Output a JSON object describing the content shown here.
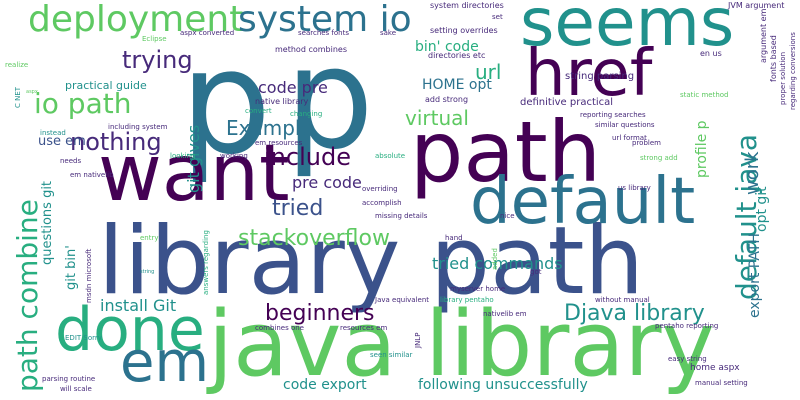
{
  "palette": {
    "dark_purple": "#440154",
    "indigo": "#472a7a",
    "dark_blue": "#3b528b",
    "steel_blue": "#2c728e",
    "teal": "#21918c",
    "sea_green": "#28ae80",
    "green": "#5ec962",
    "lime": "#addc30",
    "yellow": "#dde318"
  },
  "words": [
    {
      "text": "p",
      "weight": 320,
      "color": "#2c728e"
    },
    {
      "text": "p",
      "weight": 300,
      "color": "#2c728e"
    },
    {
      "text": "library path",
      "weight": 100,
      "color": "#3b528b"
    },
    {
      "text": "java library",
      "weight": 96,
      "color": "#5ec962"
    },
    {
      "text": "path",
      "weight": 86,
      "color": "#440154"
    },
    {
      "text": "want",
      "weight": 82,
      "color": "#440154"
    },
    {
      "text": "seems",
      "weight": 66,
      "color": "#21918c"
    },
    {
      "text": "href",
      "weight": 66,
      "color": "#440154"
    },
    {
      "text": "default",
      "weight": 64,
      "color": "#2c728e"
    },
    {
      "text": "done",
      "weight": 62,
      "color": "#28ae80"
    },
    {
      "text": "em",
      "weight": 60,
      "color": "#2c728e"
    },
    {
      "text": "deployment",
      "weight": 38,
      "color": "#5ec962"
    },
    {
      "text": "system io",
      "weight": 38,
      "color": "#2c728e"
    },
    {
      "text": "io path",
      "weight": 30,
      "color": "#5ec962"
    },
    {
      "text": "path combine",
      "weight": 30,
      "color": "#28ae80"
    },
    {
      "text": "default java",
      "weight": 28,
      "color": "#21918c"
    },
    {
      "text": "trying",
      "weight": 26,
      "color": "#472a7a"
    },
    {
      "text": "nothing",
      "weight": 26,
      "color": "#472a7a"
    },
    {
      "text": "include",
      "weight": 26,
      "color": "#440154"
    },
    {
      "text": "stackoverflow",
      "weight": 24,
      "color": "#5ec962"
    },
    {
      "text": "beginners",
      "weight": 24,
      "color": "#440154"
    },
    {
      "text": "Djava library",
      "weight": 24,
      "color": "#21918c"
    },
    {
      "text": "url",
      "weight": 22,
      "color": "#28ae80"
    },
    {
      "text": "virtual",
      "weight": 22,
      "color": "#5ec962"
    },
    {
      "text": "tried",
      "weight": 22,
      "color": "#3b528b"
    },
    {
      "text": "Example",
      "weight": 20,
      "color": "#2c728e"
    },
    {
      "text": "work",
      "weight": 18,
      "color": "#2c728e"
    },
    {
      "text": "code pre",
      "weight": 18,
      "color": "#472a7a"
    },
    {
      "text": "git gives",
      "weight": 16,
      "color": "#21918c"
    },
    {
      "text": "pre code",
      "weight": 16,
      "color": "#472a7a"
    },
    {
      "text": "tried commands",
      "weight": 16,
      "color": "#21918c"
    },
    {
      "text": "install Git",
      "weight": 16,
      "color": "#21918c"
    },
    {
      "text": "HOME opt",
      "weight": 14,
      "color": "#2c728e"
    },
    {
      "text": "profile p",
      "weight": 14,
      "color": "#5ec962"
    },
    {
      "text": "opt git",
      "weight": 14,
      "color": "#21918c"
    },
    {
      "text": "export PATH",
      "weight": 14,
      "color": "#2c728e"
    },
    {
      "text": "following unsuccessfully",
      "weight": 14,
      "color": "#21918c"
    },
    {
      "text": "code export",
      "weight": 14,
      "color": "#21918c"
    },
    {
      "text": "bin' code",
      "weight": 14,
      "color": "#28ae80"
    },
    {
      "text": "questions git",
      "weight": 13,
      "color": "#21918c"
    },
    {
      "text": "git bin'",
      "weight": 13,
      "color": "#21918c"
    },
    {
      "text": "use em",
      "weight": 13,
      "color": "#3b528b"
    },
    {
      "text": "practical guide",
      "weight": 11,
      "color": "#21918c"
    },
    {
      "text": "definitive practical",
      "weight": 10,
      "color": "#472a7a"
    },
    {
      "text": "string parsing",
      "weight": 10,
      "color": "#472a7a"
    },
    {
      "text": "method combines",
      "weight": 8,
      "color": "#472a7a"
    },
    {
      "text": "native library",
      "weight": 8,
      "color": "#472a7a"
    },
    {
      "text": "add strong",
      "weight": 8,
      "color": "#472a7a"
    },
    {
      "text": "system directories",
      "weight": 8,
      "color": "#472a7a"
    },
    {
      "text": "setting overrides",
      "weight": 8,
      "color": "#472a7a"
    },
    {
      "text": "directories etc",
      "weight": 8,
      "color": "#472a7a"
    },
    {
      "text": "JVM argument",
      "weight": 8,
      "color": "#472a7a"
    },
    {
      "text": "argument em",
      "weight": 8,
      "color": "#472a7a"
    },
    {
      "text": "fonts based",
      "weight": 8,
      "color": "#472a7a"
    },
    {
      "text": "regarding conversions",
      "weight": 7,
      "color": "#472a7a"
    },
    {
      "text": "proper solution",
      "weight": 7,
      "color": "#472a7a"
    },
    {
      "text": "en us",
      "weight": 8,
      "color": "#472a7a"
    },
    {
      "text": "set",
      "weight": 7,
      "color": "#472a7a"
    },
    {
      "text": "sake",
      "weight": 7,
      "color": "#472a7a"
    },
    {
      "text": "searches fonts",
      "weight": 7,
      "color": "#472a7a"
    },
    {
      "text": "aspx converted",
      "weight": 7,
      "color": "#472a7a"
    },
    {
      "text": "Eclipse",
      "weight": 7,
      "color": "#5ec962"
    },
    {
      "text": "realize",
      "weight": 7,
      "color": "#5ec962"
    },
    {
      "text": "aspx",
      "weight": 5,
      "color": "#5ec962"
    },
    {
      "text": "C NET",
      "weight": 7,
      "color": "#21918c"
    },
    {
      "text": "changing",
      "weight": 7,
      "color": "#28ae80"
    },
    {
      "text": "convert",
      "weight": 7,
      "color": "#28ae80"
    },
    {
      "text": "static method",
      "weight": 7,
      "color": "#5ec962"
    },
    {
      "text": "reporting searches",
      "weight": 7,
      "color": "#472a7a"
    },
    {
      "text": "similar questions",
      "weight": 7,
      "color": "#472a7a"
    },
    {
      "text": "problem",
      "weight": 7,
      "color": "#472a7a"
    },
    {
      "text": "url format",
      "weight": 7,
      "color": "#472a7a"
    },
    {
      "text": "strong add",
      "weight": 7,
      "color": "#5ec962"
    },
    {
      "text": "instead",
      "weight": 7,
      "color": "#21918c"
    },
    {
      "text": "including system",
      "weight": 7,
      "color": "#472a7a"
    },
    {
      "text": "looking",
      "weight": 7,
      "color": "#28ae80"
    },
    {
      "text": "working",
      "weight": 7,
      "color": "#472a7a"
    },
    {
      "text": "em resources",
      "weight": 7,
      "color": "#472a7a"
    },
    {
      "text": "absolute",
      "weight": 7,
      "color": "#28ae80"
    },
    {
      "text": "needs",
      "weight": 7,
      "color": "#472a7a"
    },
    {
      "text": "em nativelib",
      "weight": 7,
      "color": "#472a7a"
    },
    {
      "text": "overriding",
      "weight": 7,
      "color": "#472a7a"
    },
    {
      "text": "accomplish",
      "weight": 7,
      "color": "#472a7a"
    },
    {
      "text": "missing details",
      "weight": 7,
      "color": "#472a7a"
    },
    {
      "text": "nice",
      "weight": 7,
      "color": "#472a7a"
    },
    {
      "text": "us library",
      "weight": 7,
      "color": "#472a7a"
    },
    {
      "text": "msdn microsoft",
      "weight": 7,
      "color": "#472a7a"
    },
    {
      "text": "entry",
      "weight": 7,
      "color": "#5ec962"
    },
    {
      "text": "answers regarding",
      "weight": 7,
      "color": "#28ae80"
    },
    {
      "text": "hand",
      "weight": 7,
      "color": "#472a7a"
    },
    {
      "text": "added",
      "weight": 7,
      "color": "#5ec962"
    },
    {
      "text": "got",
      "weight": 7,
      "color": "#472a7a"
    },
    {
      "text": "string",
      "weight": 5,
      "color": "#21918c"
    },
    {
      "text": "myserver home",
      "weight": 7,
      "color": "#472a7a"
    },
    {
      "text": "library pentaho",
      "weight": 7,
      "color": "#28ae80"
    },
    {
      "text": "Java equivalent",
      "weight": 7,
      "color": "#472a7a"
    },
    {
      "text": "without manual",
      "weight": 7,
      "color": "#472a7a"
    },
    {
      "text": "resources em",
      "weight": 7,
      "color": "#472a7a"
    },
    {
      "text": "nativelib em",
      "weight": 7,
      "color": "#472a7a"
    },
    {
      "text": "combines one",
      "weight": 7,
      "color": "#472a7a"
    },
    {
      "text": "pentaho reporting",
      "weight": 7,
      "color": "#472a7a"
    },
    {
      "text": "JNLP",
      "weight": 7,
      "color": "#472a7a"
    },
    {
      "text": "EDIT Sorry",
      "weight": 7,
      "color": "#21918c"
    },
    {
      "text": "seen similar",
      "weight": 7,
      "color": "#21918c"
    },
    {
      "text": "easy string",
      "weight": 7,
      "color": "#472a7a"
    },
    {
      "text": "home aspx",
      "weight": 9,
      "color": "#472a7a"
    },
    {
      "text": "parsing routine",
      "weight": 7,
      "color": "#472a7a"
    },
    {
      "text": "will scale",
      "weight": 7,
      "color": "#472a7a"
    },
    {
      "text": "manual setting",
      "weight": 7,
      "color": "#472a7a"
    }
  ]
}
